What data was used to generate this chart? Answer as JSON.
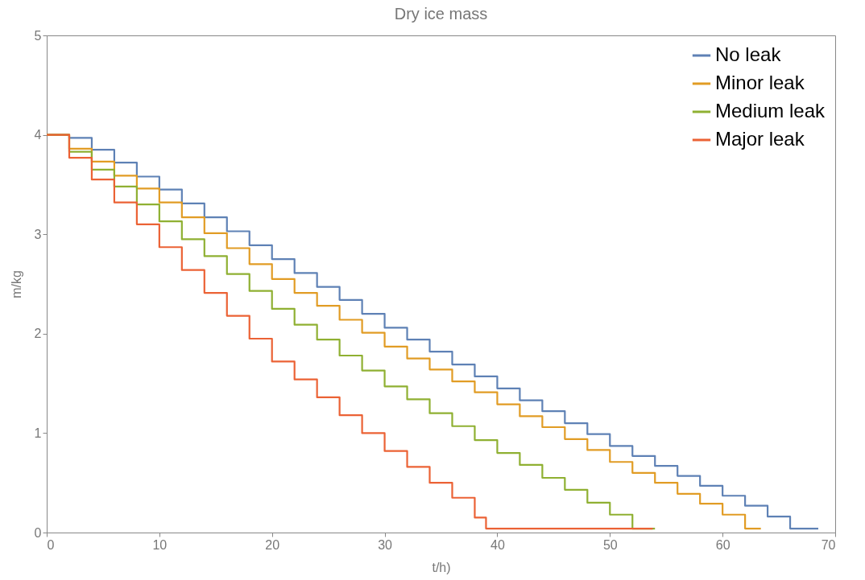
{
  "chart_data": {
    "type": "step",
    "title": "Dry ice mass",
    "xlabel": "t/h)",
    "ylabel": "m/kg",
    "xlim": [
      0,
      70
    ],
    "xticks": [
      0,
      10,
      20,
      30,
      40,
      50,
      60,
      70
    ],
    "ylim": [
      0,
      5
    ],
    "yticks": [
      0,
      1,
      2,
      3,
      4,
      5
    ],
    "grid": false,
    "legend": "top right",
    "line_style": "solid",
    "marker": "none",
    "series": [
      {
        "name": "No leak",
        "color": "#5e81b5",
        "x": [
          0,
          2,
          4,
          6,
          8,
          10,
          12,
          14,
          16,
          18,
          20,
          22,
          24,
          26,
          28,
          30,
          32,
          34,
          36,
          38,
          40,
          42,
          44,
          46,
          48,
          50,
          52,
          54,
          56,
          58,
          60,
          62,
          64,
          66,
          68.5
        ],
        "values": [
          4.0,
          3.97,
          3.85,
          3.72,
          3.58,
          3.45,
          3.31,
          3.17,
          3.03,
          2.89,
          2.75,
          2.61,
          2.47,
          2.34,
          2.2,
          2.06,
          1.94,
          1.82,
          1.69,
          1.57,
          1.45,
          1.33,
          1.22,
          1.1,
          0.99,
          0.87,
          0.77,
          0.67,
          0.57,
          0.47,
          0.37,
          0.27,
          0.16,
          0.04,
          0.04
        ]
      },
      {
        "name": "Minor leak",
        "color": "#e19c24",
        "x": [
          0,
          2,
          4,
          6,
          8,
          10,
          12,
          14,
          16,
          18,
          20,
          22,
          24,
          26,
          28,
          30,
          32,
          34,
          36,
          38,
          40,
          42,
          44,
          46,
          48,
          50,
          52,
          54,
          56,
          58,
          60,
          62,
          63.4
        ],
        "values": [
          4.0,
          3.86,
          3.73,
          3.59,
          3.46,
          3.32,
          3.17,
          3.01,
          2.86,
          2.7,
          2.55,
          2.41,
          2.28,
          2.14,
          2.01,
          1.87,
          1.75,
          1.64,
          1.52,
          1.41,
          1.29,
          1.17,
          1.06,
          0.94,
          0.83,
          0.71,
          0.6,
          0.5,
          0.39,
          0.29,
          0.18,
          0.04,
          0.04
        ]
      },
      {
        "name": "Medium leak",
        "color": "#8fb032",
        "x": [
          0,
          2,
          4,
          6,
          8,
          10,
          12,
          14,
          16,
          18,
          20,
          22,
          24,
          26,
          28,
          30,
          32,
          34,
          36,
          38,
          40,
          42,
          44,
          46,
          48,
          50,
          52,
          54
        ],
        "values": [
          4.0,
          3.83,
          3.65,
          3.48,
          3.3,
          3.13,
          2.95,
          2.78,
          2.6,
          2.43,
          2.25,
          2.09,
          1.94,
          1.78,
          1.63,
          1.47,
          1.34,
          1.2,
          1.07,
          0.93,
          0.8,
          0.68,
          0.55,
          0.43,
          0.3,
          0.18,
          0.04,
          0.04
        ]
      },
      {
        "name": "Major leak",
        "color": "#eb6235",
        "x": [
          0,
          2,
          4,
          6,
          8,
          10,
          12,
          14,
          16,
          18,
          20,
          22,
          24,
          26,
          28,
          30,
          32,
          34,
          36,
          38,
          39,
          53.8
        ],
        "values": [
          4.0,
          3.77,
          3.55,
          3.32,
          3.1,
          2.87,
          2.64,
          2.41,
          2.18,
          1.95,
          1.72,
          1.54,
          1.36,
          1.18,
          1.0,
          0.82,
          0.66,
          0.5,
          0.35,
          0.15,
          0.04,
          0.04
        ]
      }
    ]
  }
}
